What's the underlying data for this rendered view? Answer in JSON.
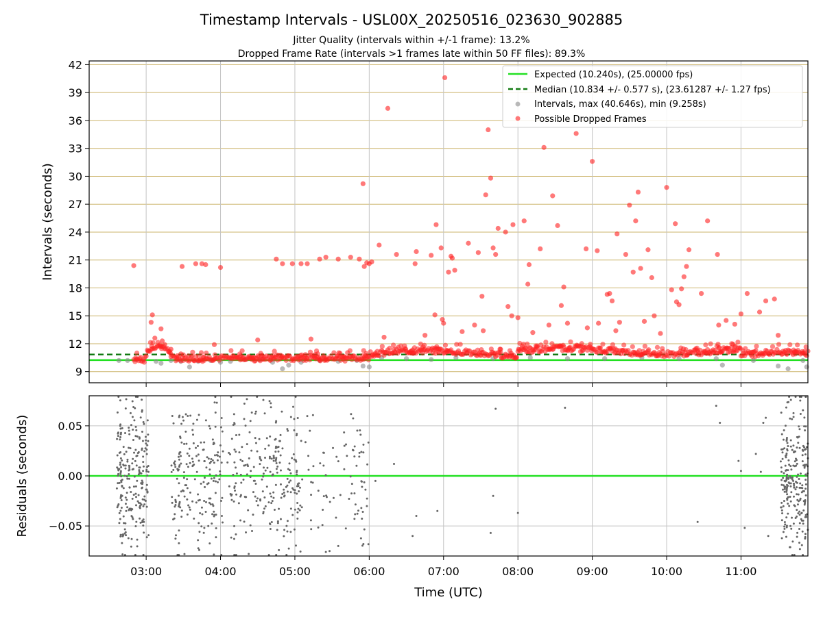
{
  "figure": {
    "title": "Timestamp Intervals - USL00X_20250516_023630_902885",
    "subtitle_1": "Jitter Quality (intervals within +/-1 frame): 13.2%",
    "subtitle_2": "Dropped Frame Rate (intervals >1 frames late within 50 FF files): 89.3%"
  },
  "colors": {
    "expected": "#22e022",
    "median": "#127a12",
    "intervals": "#8a8a8a",
    "dropped": "#ff2020",
    "hgrid": "#cbb36a",
    "vgrid": "#c4c4c4",
    "residual": "#666666"
  },
  "chart_data": [
    {
      "type": "scatter",
      "title": "",
      "ylabel": "Intervals (seconds)",
      "xlabel": "",
      "xlim": [
        "02:14",
        "11:54"
      ],
      "ylim": [
        7.8,
        42.4
      ],
      "yticks": [
        9,
        12,
        15,
        18,
        21,
        24,
        27,
        30,
        33,
        36,
        39,
        42
      ],
      "xticks": [
        "03:00",
        "04:00",
        "05:00",
        "06:00",
        "07:00",
        "08:00",
        "09:00",
        "10:00",
        "11:00"
      ],
      "grid": "on",
      "legend_position": "top-right",
      "lines": [
        {
          "name": "Expected (10.240s), (25.00000 fps)",
          "y": 10.24,
          "style": "solid"
        },
        {
          "name": "Median (10.834 +/- 0.577 s), (23.61287 +/- 1.27 fps)",
          "y": 10.834,
          "style": "dashed"
        }
      ],
      "series": [
        {
          "name": "Intervals, max (40.646s), min (9.258s)",
          "points": [
            [
              "02:38",
              10.2
            ],
            [
              "02:45",
              10.2
            ],
            [
              "02:52",
              10.3
            ],
            [
              "03:08",
              10.1
            ],
            [
              "03:12",
              9.9
            ],
            [
              "03:20",
              10.2
            ],
            [
              "03:28",
              10.1
            ],
            [
              "03:35",
              9.5
            ],
            [
              "03:42",
              10.1
            ],
            [
              "03:52",
              10.2
            ],
            [
              "04:00",
              10.0
            ],
            [
              "04:08",
              10.1
            ],
            [
              "04:20",
              10.3
            ],
            [
              "04:32",
              10.3
            ],
            [
              "04:42",
              10.0
            ],
            [
              "04:50",
              9.3
            ],
            [
              "04:55",
              9.7
            ],
            [
              "05:05",
              10.0
            ],
            [
              "05:20",
              10.2
            ],
            [
              "05:35",
              10.1
            ],
            [
              "05:50",
              10.2
            ],
            [
              "05:55",
              9.6
            ],
            [
              "06:00",
              9.5
            ],
            [
              "06:10",
              10.5
            ],
            [
              "06:30",
              10.4
            ],
            [
              "06:50",
              10.3
            ],
            [
              "07:10",
              10.5
            ],
            [
              "07:40",
              10.4
            ],
            [
              "08:10",
              10.5
            ],
            [
              "08:40",
              10.4
            ],
            [
              "09:10",
              10.4
            ],
            [
              "09:40",
              10.5
            ],
            [
              "10:10",
              10.4
            ],
            [
              "10:40",
              10.4
            ],
            [
              "10:45",
              9.7
            ],
            [
              "11:10",
              10.2
            ],
            [
              "11:30",
              9.6
            ],
            [
              "11:38",
              9.3
            ],
            [
              "11:50",
              10.2
            ],
            [
              "11:53",
              9.5
            ]
          ]
        },
        {
          "name": "Possible Dropped Frames",
          "points": [
            [
              "02:50",
              20.4
            ],
            [
              "03:05",
              15.1
            ],
            [
              "03:04",
              14.3
            ],
            [
              "03:07",
              12.6
            ],
            [
              "03:13",
              12.3
            ],
            [
              "03:12",
              13.6
            ],
            [
              "03:15",
              11.9
            ],
            [
              "03:20",
              11.4
            ],
            [
              "03:25",
              10.7
            ],
            [
              "03:28",
              10.9
            ],
            [
              "03:30",
              10.8
            ],
            [
              "03:29",
              20.3
            ],
            [
              "03:40",
              20.6
            ],
            [
              "03:45",
              20.6
            ],
            [
              "03:48",
              20.5
            ],
            [
              "04:00",
              20.2
            ],
            [
              "03:55",
              11.9
            ],
            [
              "04:10",
              10.7
            ],
            [
              "04:30",
              12.4
            ],
            [
              "04:45",
              21.1
            ],
            [
              "04:50",
              20.6
            ],
            [
              "04:58",
              20.6
            ],
            [
              "05:05",
              20.6
            ],
            [
              "05:10",
              20.6
            ],
            [
              "05:13",
              12.5
            ],
            [
              "05:20",
              21.1
            ],
            [
              "05:25",
              21.3
            ],
            [
              "05:35",
              21.1
            ],
            [
              "05:45",
              21.3
            ],
            [
              "05:52",
              21.1
            ],
            [
              "05:55",
              29.2
            ],
            [
              "05:56",
              20.3
            ],
            [
              "05:58",
              20.7
            ],
            [
              "06:00",
              20.6
            ],
            [
              "06:02",
              20.8
            ],
            [
              "06:08",
              22.6
            ],
            [
              "06:12",
              12.7
            ],
            [
              "06:15",
              37.3
            ],
            [
              "06:22",
              21.6
            ],
            [
              "06:37",
              20.6
            ],
            [
              "06:38",
              21.9
            ],
            [
              "06:45",
              12.9
            ],
            [
              "06:50",
              21.5
            ],
            [
              "06:53",
              15.1
            ],
            [
              "06:54",
              24.8
            ],
            [
              "06:58",
              22.3
            ],
            [
              "06:59",
              14.6
            ],
            [
              "07:00",
              14.2
            ],
            [
              "07:01",
              40.6
            ],
            [
              "07:04",
              19.7
            ],
            [
              "07:06",
              21.4
            ],
            [
              "07:07",
              21.2
            ],
            [
              "07:09",
              19.9
            ],
            [
              "07:15",
              13.3
            ],
            [
              "07:20",
              22.8
            ],
            [
              "07:25",
              14.0
            ],
            [
              "07:28",
              21.8
            ],
            [
              "07:31",
              17.1
            ],
            [
              "07:32",
              13.4
            ],
            [
              "07:34",
              28.0
            ],
            [
              "07:36",
              35.0
            ],
            [
              "07:38",
              29.8
            ],
            [
              "07:40",
              22.3
            ],
            [
              "07:42",
              21.6
            ],
            [
              "07:44",
              24.4
            ],
            [
              "07:46",
              11.4
            ],
            [
              "07:50",
              24.0
            ],
            [
              "07:52",
              16.0
            ],
            [
              "07:55",
              15.0
            ],
            [
              "07:56",
              24.8
            ],
            [
              "08:00",
              14.8
            ],
            [
              "08:05",
              25.2
            ],
            [
              "08:08",
              18.4
            ],
            [
              "08:09",
              20.5
            ],
            [
              "08:12",
              13.2
            ],
            [
              "08:18",
              22.2
            ],
            [
              "08:21",
              33.1
            ],
            [
              "08:25",
              14.0
            ],
            [
              "08:28",
              27.9
            ],
            [
              "08:32",
              24.7
            ],
            [
              "08:35",
              16.1
            ],
            [
              "08:37",
              18.1
            ],
            [
              "08:40",
              14.2
            ],
            [
              "08:47",
              34.6
            ],
            [
              "08:55",
              22.2
            ],
            [
              "08:56",
              13.7
            ],
            [
              "09:00",
              31.6
            ],
            [
              "09:04",
              22.0
            ],
            [
              "09:05",
              14.2
            ],
            [
              "09:12",
              17.3
            ],
            [
              "09:14",
              17.4
            ],
            [
              "09:16",
              16.6
            ],
            [
              "09:19",
              13.4
            ],
            [
              "09:20",
              23.8
            ],
            [
              "09:22",
              14.3
            ],
            [
              "09:27",
              21.6
            ],
            [
              "09:30",
              26.9
            ],
            [
              "09:33",
              19.7
            ],
            [
              "09:35",
              25.2
            ],
            [
              "09:37",
              28.3
            ],
            [
              "09:39",
              20.1
            ],
            [
              "09:42",
              14.4
            ],
            [
              "09:45",
              22.1
            ],
            [
              "09:48",
              19.1
            ],
            [
              "09:50",
              15.0
            ],
            [
              "09:55",
              13.1
            ],
            [
              "10:00",
              28.8
            ],
            [
              "10:04",
              17.8
            ],
            [
              "10:07",
              24.9
            ],
            [
              "10:08",
              16.5
            ],
            [
              "10:10",
              16.2
            ],
            [
              "10:12",
              17.9
            ],
            [
              "10:14",
              19.2
            ],
            [
              "10:16",
              20.3
            ],
            [
              "10:18",
              22.1
            ],
            [
              "10:28",
              17.4
            ],
            [
              "10:33",
              25.2
            ],
            [
              "10:41",
              21.6
            ],
            [
              "10:42",
              14.0
            ],
            [
              "10:48",
              14.5
            ],
            [
              "10:55",
              14.1
            ],
            [
              "11:00",
              15.2
            ],
            [
              "11:05",
              17.4
            ],
            [
              "11:15",
              15.4
            ],
            [
              "11:20",
              16.6
            ],
            [
              "11:27",
              16.8
            ],
            [
              "11:30",
              12.9
            ]
          ]
        }
      ]
    },
    {
      "type": "scatter",
      "title": "",
      "ylabel": "Residuals (seconds)",
      "xlabel": "Time (UTC)",
      "xlim": [
        "02:14",
        "11:54"
      ],
      "ylim": [
        -0.08,
        0.08
      ],
      "yticks": [
        0.05,
        0.0,
        -0.05
      ],
      "ytick_labels": [
        "0.05",
        "0.00",
        "−0.05"
      ],
      "xticks": [
        "03:00",
        "04:00",
        "05:00",
        "06:00",
        "07:00",
        "08:00",
        "09:00",
        "10:00",
        "11:00"
      ],
      "grid": "on",
      "reference_line_y": 0.0,
      "series": [
        {
          "name": "",
          "clusters": [
            [
              "02:36",
              "03:02",
              240
            ],
            [
              "03:20",
              "04:02",
              200
            ],
            [
              "04:05",
              "04:40",
              120
            ],
            [
              "04:40",
              "05:05",
              120
            ],
            [
              "05:05",
              "05:45",
              40
            ],
            [
              "05:45",
              "06:00",
              40
            ],
            [
              "11:32",
              "11:54",
              240
            ]
          ],
          "sparse": [
            [
              "06:35",
              -0.06
            ],
            [
              "06:38",
              -0.04
            ],
            [
              "06:55",
              -0.035
            ],
            [
              "07:38",
              -0.057
            ],
            [
              "07:40",
              -0.02
            ],
            [
              "07:42",
              0.067
            ],
            [
              "08:00",
              -0.037
            ],
            [
              "08:38",
              0.068
            ],
            [
              "10:25",
              -0.046
            ],
            [
              "10:40",
              0.07
            ],
            [
              "10:43",
              0.053
            ],
            [
              "10:58",
              0.015
            ],
            [
              "11:00",
              0.005
            ],
            [
              "11:03",
              -0.052
            ],
            [
              "11:12",
              0.022
            ],
            [
              "11:16",
              0.004
            ],
            [
              "11:18",
              0.053
            ],
            [
              "11:20",
              0.058
            ],
            [
              "11:22",
              -0.06
            ],
            [
              "06:05",
              -0.005
            ],
            [
              "06:20",
              0.012
            ],
            [
              "05:28",
              -0.075
            ],
            [
              "05:25",
              -0.076
            ],
            [
              "05:35",
              -0.07
            ],
            [
              "05:40",
              0.03
            ],
            [
              "05:42",
              0.02
            ]
          ]
        }
      ]
    }
  ]
}
